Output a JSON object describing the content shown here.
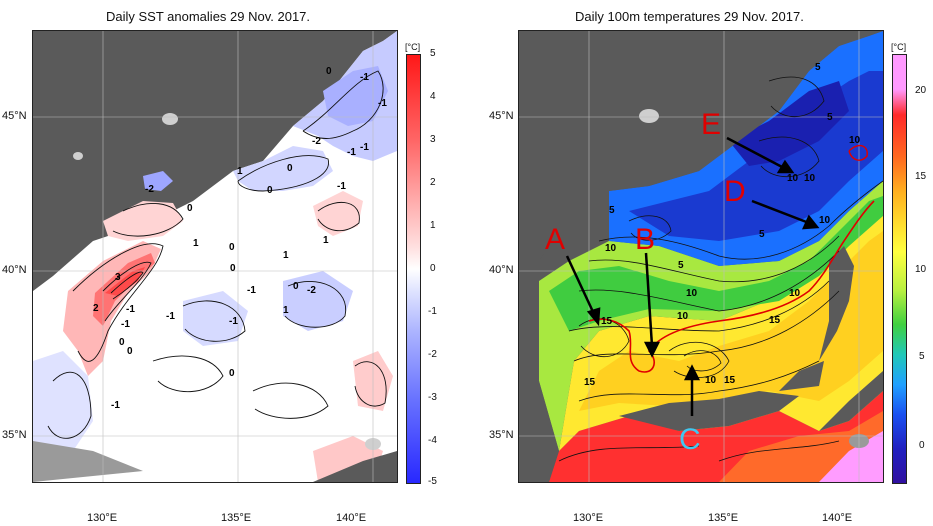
{
  "left_panel": {
    "title": "Daily SST anomalies 29 Nov. 2017.",
    "y_ticks": [
      "45°N",
      "40°N",
      "35°N"
    ],
    "x_ticks": [
      "130°E",
      "135°E",
      "140°E"
    ],
    "colorbar": {
      "unit": "[°C]",
      "ticks": [
        "5",
        "4",
        "3",
        "2",
        "1",
        "0",
        "-1",
        "-2",
        "-3",
        "-4",
        "-5"
      ],
      "colors_top_to_bottom": [
        "#ff2020",
        "#ff6b6b",
        "#ffa7a7",
        "#ffd8d8",
        "#ffffff",
        "#d8dcff",
        "#a9b0ff",
        "#6f78ff",
        "#3a3aff"
      ]
    },
    "contour_labels": [
      "0",
      "-1",
      "-1",
      "-2",
      "-1",
      "-1",
      "-2",
      "1",
      "0",
      "0",
      "-1",
      "0",
      "1",
      "1",
      "0",
      "-1",
      "3",
      "2",
      "-1",
      "-1",
      "-1",
      "0",
      "0",
      "0",
      "-2",
      "-1",
      "-1",
      "0",
      "1",
      "0",
      "1"
    ]
  },
  "right_panel": {
    "title": "Daily 100m temperatures 29 Nov. 2017.",
    "y_ticks": [
      "45°N",
      "40°N",
      "35°N"
    ],
    "x_ticks": [
      "130°E",
      "135°E",
      "140°E"
    ],
    "colorbar": {
      "unit": "[°C]",
      "ticks": [
        "20",
        "15",
        "10",
        "5",
        "0"
      ],
      "colors_top_to_bottom": [
        "#ff9aff",
        "#ff3a3a",
        "#ff8a20",
        "#ffd020",
        "#ffff40",
        "#b8f040",
        "#30d040",
        "#20c8c8",
        "#1a70ff",
        "#1a30d0",
        "#3010a0"
      ]
    },
    "contour_labels": [
      "5",
      "10",
      "5",
      "10",
      "5",
      "10",
      "10",
      "5",
      "5",
      "10",
      "10",
      "10",
      "15",
      "15",
      "10",
      "15",
      "10",
      "15"
    ],
    "markers": [
      {
        "label": "A",
        "color": "#e00000"
      },
      {
        "label": "B",
        "color": "#e00000"
      },
      {
        "label": "C",
        "color": "#40c8f0"
      },
      {
        "label": "D",
        "color": "#e00000"
      },
      {
        "label": "E",
        "color": "#e00000"
      }
    ]
  }
}
